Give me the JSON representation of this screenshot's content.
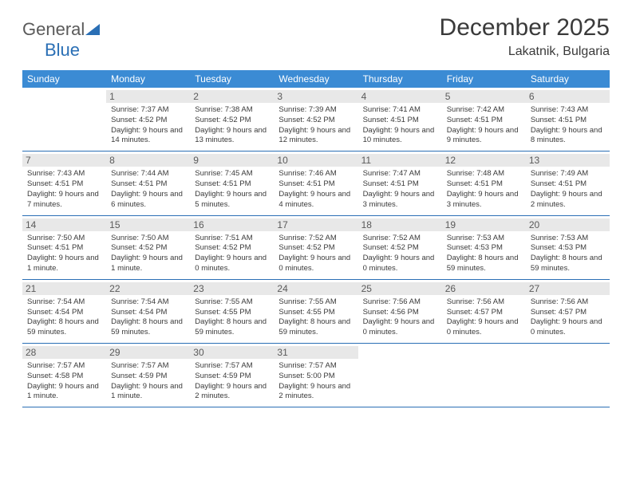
{
  "logo": {
    "text1": "General",
    "text2": "Blue"
  },
  "title": "December 2025",
  "location": "Lakatnik, Bulgaria",
  "accentColor": "#3b8bd4",
  "dividerColor": "#2a6fb5",
  "dayHeaderBg": "#e8e8e8",
  "dayNames": [
    "Sunday",
    "Monday",
    "Tuesday",
    "Wednesday",
    "Thursday",
    "Friday",
    "Saturday"
  ],
  "weeks": [
    [
      {
        "n": "",
        "sr": "",
        "ss": "",
        "dl": ""
      },
      {
        "n": "1",
        "sr": "Sunrise: 7:37 AM",
        "ss": "Sunset: 4:52 PM",
        "dl": "Daylight: 9 hours and 14 minutes."
      },
      {
        "n": "2",
        "sr": "Sunrise: 7:38 AM",
        "ss": "Sunset: 4:52 PM",
        "dl": "Daylight: 9 hours and 13 minutes."
      },
      {
        "n": "3",
        "sr": "Sunrise: 7:39 AM",
        "ss": "Sunset: 4:52 PM",
        "dl": "Daylight: 9 hours and 12 minutes."
      },
      {
        "n": "4",
        "sr": "Sunrise: 7:41 AM",
        "ss": "Sunset: 4:51 PM",
        "dl": "Daylight: 9 hours and 10 minutes."
      },
      {
        "n": "5",
        "sr": "Sunrise: 7:42 AM",
        "ss": "Sunset: 4:51 PM",
        "dl": "Daylight: 9 hours and 9 minutes."
      },
      {
        "n": "6",
        "sr": "Sunrise: 7:43 AM",
        "ss": "Sunset: 4:51 PM",
        "dl": "Daylight: 9 hours and 8 minutes."
      }
    ],
    [
      {
        "n": "7",
        "sr": "Sunrise: 7:43 AM",
        "ss": "Sunset: 4:51 PM",
        "dl": "Daylight: 9 hours and 7 minutes."
      },
      {
        "n": "8",
        "sr": "Sunrise: 7:44 AM",
        "ss": "Sunset: 4:51 PM",
        "dl": "Daylight: 9 hours and 6 minutes."
      },
      {
        "n": "9",
        "sr": "Sunrise: 7:45 AM",
        "ss": "Sunset: 4:51 PM",
        "dl": "Daylight: 9 hours and 5 minutes."
      },
      {
        "n": "10",
        "sr": "Sunrise: 7:46 AM",
        "ss": "Sunset: 4:51 PM",
        "dl": "Daylight: 9 hours and 4 minutes."
      },
      {
        "n": "11",
        "sr": "Sunrise: 7:47 AM",
        "ss": "Sunset: 4:51 PM",
        "dl": "Daylight: 9 hours and 3 minutes."
      },
      {
        "n": "12",
        "sr": "Sunrise: 7:48 AM",
        "ss": "Sunset: 4:51 PM",
        "dl": "Daylight: 9 hours and 3 minutes."
      },
      {
        "n": "13",
        "sr": "Sunrise: 7:49 AM",
        "ss": "Sunset: 4:51 PM",
        "dl": "Daylight: 9 hours and 2 minutes."
      }
    ],
    [
      {
        "n": "14",
        "sr": "Sunrise: 7:50 AM",
        "ss": "Sunset: 4:51 PM",
        "dl": "Daylight: 9 hours and 1 minute."
      },
      {
        "n": "15",
        "sr": "Sunrise: 7:50 AM",
        "ss": "Sunset: 4:52 PM",
        "dl": "Daylight: 9 hours and 1 minute."
      },
      {
        "n": "16",
        "sr": "Sunrise: 7:51 AM",
        "ss": "Sunset: 4:52 PM",
        "dl": "Daylight: 9 hours and 0 minutes."
      },
      {
        "n": "17",
        "sr": "Sunrise: 7:52 AM",
        "ss": "Sunset: 4:52 PM",
        "dl": "Daylight: 9 hours and 0 minutes."
      },
      {
        "n": "18",
        "sr": "Sunrise: 7:52 AM",
        "ss": "Sunset: 4:52 PM",
        "dl": "Daylight: 9 hours and 0 minutes."
      },
      {
        "n": "19",
        "sr": "Sunrise: 7:53 AM",
        "ss": "Sunset: 4:53 PM",
        "dl": "Daylight: 8 hours and 59 minutes."
      },
      {
        "n": "20",
        "sr": "Sunrise: 7:53 AM",
        "ss": "Sunset: 4:53 PM",
        "dl": "Daylight: 8 hours and 59 minutes."
      }
    ],
    [
      {
        "n": "21",
        "sr": "Sunrise: 7:54 AM",
        "ss": "Sunset: 4:54 PM",
        "dl": "Daylight: 8 hours and 59 minutes."
      },
      {
        "n": "22",
        "sr": "Sunrise: 7:54 AM",
        "ss": "Sunset: 4:54 PM",
        "dl": "Daylight: 8 hours and 59 minutes."
      },
      {
        "n": "23",
        "sr": "Sunrise: 7:55 AM",
        "ss": "Sunset: 4:55 PM",
        "dl": "Daylight: 8 hours and 59 minutes."
      },
      {
        "n": "24",
        "sr": "Sunrise: 7:55 AM",
        "ss": "Sunset: 4:55 PM",
        "dl": "Daylight: 8 hours and 59 minutes."
      },
      {
        "n": "25",
        "sr": "Sunrise: 7:56 AM",
        "ss": "Sunset: 4:56 PM",
        "dl": "Daylight: 9 hours and 0 minutes."
      },
      {
        "n": "26",
        "sr": "Sunrise: 7:56 AM",
        "ss": "Sunset: 4:57 PM",
        "dl": "Daylight: 9 hours and 0 minutes."
      },
      {
        "n": "27",
        "sr": "Sunrise: 7:56 AM",
        "ss": "Sunset: 4:57 PM",
        "dl": "Daylight: 9 hours and 0 minutes."
      }
    ],
    [
      {
        "n": "28",
        "sr": "Sunrise: 7:57 AM",
        "ss": "Sunset: 4:58 PM",
        "dl": "Daylight: 9 hours and 1 minute."
      },
      {
        "n": "29",
        "sr": "Sunrise: 7:57 AM",
        "ss": "Sunset: 4:59 PM",
        "dl": "Daylight: 9 hours and 1 minute."
      },
      {
        "n": "30",
        "sr": "Sunrise: 7:57 AM",
        "ss": "Sunset: 4:59 PM",
        "dl": "Daylight: 9 hours and 2 minutes."
      },
      {
        "n": "31",
        "sr": "Sunrise: 7:57 AM",
        "ss": "Sunset: 5:00 PM",
        "dl": "Daylight: 9 hours and 2 minutes."
      },
      {
        "n": "",
        "sr": "",
        "ss": "",
        "dl": ""
      },
      {
        "n": "",
        "sr": "",
        "ss": "",
        "dl": ""
      },
      {
        "n": "",
        "sr": "",
        "ss": "",
        "dl": ""
      }
    ]
  ]
}
